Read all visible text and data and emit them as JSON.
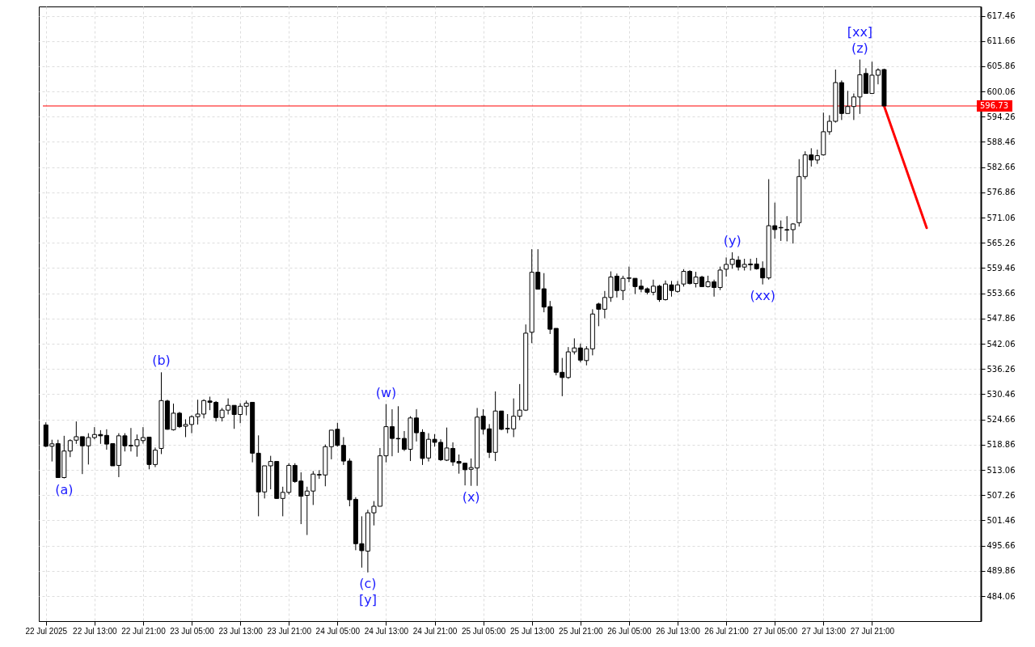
{
  "chart_data": {
    "type": "candlestick",
    "x": [
      "2025-07-22T05:00",
      "2025-07-22T06:00",
      "2025-07-22T07:00",
      "2025-07-22T08:00",
      "2025-07-22T09:00",
      "2025-07-22T10:00",
      "2025-07-22T11:00",
      "2025-07-22T12:00",
      "2025-07-22T13:00",
      "2025-07-22T14:00",
      "2025-07-22T15:00",
      "2025-07-22T16:00",
      "2025-07-22T17:00",
      "2025-07-22T18:00",
      "2025-07-22T19:00",
      "2025-07-22T20:00",
      "2025-07-22T21:00",
      "2025-07-22T22:00",
      "2025-07-22T23:00",
      "2025-07-23T00:00",
      "2025-07-23T01:00",
      "2025-07-23T02:00",
      "2025-07-23T03:00",
      "2025-07-23T04:00",
      "2025-07-23T05:00",
      "2025-07-23T06:00",
      "2025-07-23T07:00",
      "2025-07-23T08:00",
      "2025-07-23T09:00",
      "2025-07-23T10:00",
      "2025-07-23T11:00",
      "2025-07-23T12:00",
      "2025-07-23T13:00",
      "2025-07-23T14:00",
      "2025-07-23T15:00",
      "2025-07-23T16:00",
      "2025-07-23T17:00",
      "2025-07-23T18:00",
      "2025-07-23T19:00",
      "2025-07-23T20:00",
      "2025-07-23T21:00",
      "2025-07-23T22:00",
      "2025-07-23T23:00",
      "2025-07-24T00:00",
      "2025-07-24T01:00",
      "2025-07-24T02:00",
      "2025-07-24T03:00",
      "2025-07-24T04:00",
      "2025-07-24T05:00",
      "2025-07-24T06:00",
      "2025-07-24T07:00",
      "2025-07-24T08:00",
      "2025-07-24T09:00",
      "2025-07-24T10:00",
      "2025-07-24T11:00",
      "2025-07-24T12:00",
      "2025-07-24T13:00",
      "2025-07-24T14:00",
      "2025-07-24T15:00",
      "2025-07-24T16:00",
      "2025-07-24T17:00",
      "2025-07-24T18:00",
      "2025-07-24T19:00",
      "2025-07-24T20:00",
      "2025-07-24T21:00",
      "2025-07-24T22:00",
      "2025-07-24T23:00",
      "2025-07-25T00:00",
      "2025-07-25T01:00",
      "2025-07-25T02:00",
      "2025-07-25T03:00",
      "2025-07-25T04:00",
      "2025-07-25T05:00",
      "2025-07-25T06:00",
      "2025-07-25T07:00",
      "2025-07-25T08:00",
      "2025-07-25T09:00",
      "2025-07-25T10:00",
      "2025-07-25T11:00",
      "2025-07-25T12:00",
      "2025-07-25T13:00",
      "2025-07-25T14:00",
      "2025-07-25T15:00",
      "2025-07-25T16:00",
      "2025-07-25T17:00",
      "2025-07-25T18:00",
      "2025-07-25T19:00",
      "2025-07-25T20:00",
      "2025-07-25T21:00",
      "2025-07-25T22:00",
      "2025-07-25T23:00",
      "2025-07-26T00:00",
      "2025-07-26T01:00",
      "2025-07-26T02:00",
      "2025-07-26T03:00",
      "2025-07-26T04:00",
      "2025-07-26T05:00",
      "2025-07-26T06:00",
      "2025-07-26T07:00",
      "2025-07-26T08:00",
      "2025-07-26T09:00",
      "2025-07-26T10:00",
      "2025-07-26T11:00",
      "2025-07-26T12:00",
      "2025-07-26T13:00",
      "2025-07-26T14:00",
      "2025-07-26T15:00",
      "2025-07-26T16:00",
      "2025-07-26T17:00",
      "2025-07-26T18:00",
      "2025-07-26T19:00",
      "2025-07-26T20:00",
      "2025-07-26T21:00",
      "2025-07-26T22:00",
      "2025-07-26T23:00",
      "2025-07-27T00:00",
      "2025-07-27T01:00",
      "2025-07-27T02:00",
      "2025-07-27T03:00",
      "2025-07-27T04:00",
      "2025-07-27T05:00",
      "2025-07-27T06:00",
      "2025-07-27T07:00",
      "2025-07-27T08:00",
      "2025-07-27T09:00",
      "2025-07-27T10:00",
      "2025-07-27T11:00",
      "2025-07-27T12:00",
      "2025-07-27T13:00",
      "2025-07-27T14:00",
      "2025-07-27T15:00",
      "2025-07-27T16:00",
      "2025-07-27T17:00",
      "2025-07-27T18:00",
      "2025-07-27T19:00",
      "2025-07-27T20:00",
      "2025-07-27T21:00",
      "2025-07-27T22:00",
      "2025-07-27T23:00"
    ],
    "ohlc": [
      [
        523.4,
        524.0,
        518.3,
        518.5
      ],
      [
        518.5,
        520.0,
        515.0,
        519.05
      ],
      [
        519.1,
        520.0,
        511.3,
        511.3
      ],
      [
        511.3,
        520.9,
        511.1,
        517.4
      ],
      [
        517.4,
        520.1,
        516.0,
        519.8
      ],
      [
        519.9,
        524.2,
        519.05,
        520.7
      ],
      [
        520.7,
        520.7,
        512.1,
        518.6
      ],
      [
        518.6,
        521.5,
        514.3,
        520.5
      ],
      [
        520.5,
        522.9,
        520.1,
        521.2
      ],
      [
        521.2,
        522.2,
        519.05,
        520.9
      ],
      [
        521.0,
        522.4,
        517.7,
        519.0
      ],
      [
        519.1,
        519.1,
        514.0,
        514.0
      ],
      [
        514.1,
        521.5,
        511.4,
        520.9
      ],
      [
        520.9,
        521.5,
        517.3,
        518.6
      ],
      [
        518.7,
        522.7,
        517.3,
        518.6
      ],
      [
        518.6,
        521.2,
        516.1,
        520.0
      ],
      [
        519.8,
        522.9,
        519.1,
        520.5
      ],
      [
        520.6,
        520.6,
        513.2,
        514.3
      ],
      [
        514.3,
        518.2,
        513.7,
        517.6
      ],
      [
        518.0,
        535.5,
        516.7,
        529.0
      ],
      [
        528.9,
        529.2,
        522.3,
        522.4
      ],
      [
        522.3,
        528.3,
        522.1,
        526.1
      ],
      [
        526.1,
        526.4,
        522.7,
        523.0
      ],
      [
        523.1,
        524.7,
        520.6,
        523.5
      ],
      [
        523.5,
        525.6,
        521.5,
        525.3
      ],
      [
        525.3,
        529.2,
        523.5,
        525.9
      ],
      [
        525.9,
        529.3,
        524.9,
        529.0
      ],
      [
        528.9,
        529.9,
        526.8,
        528.6
      ],
      [
        528.6,
        528.9,
        524.2,
        525.1
      ],
      [
        525.1,
        527.3,
        524.2,
        526.8
      ],
      [
        526.8,
        529.5,
        525.8,
        527.9
      ],
      [
        527.9,
        527.9,
        522.5,
        525.8
      ],
      [
        525.8,
        528.4,
        523.8,
        527.7
      ],
      [
        527.7,
        529.0,
        525.6,
        528.4
      ],
      [
        528.6,
        528.6,
        514.8,
        516.9
      ],
      [
        516.9,
        521.0,
        502.4,
        508.0
      ],
      [
        508.0,
        514.0,
        506.5,
        514.0
      ],
      [
        514.0,
        516.3,
        508.6,
        515.0
      ],
      [
        515.0,
        515.0,
        506.4,
        506.5
      ],
      [
        506.5,
        509.2,
        502.4,
        507.9
      ],
      [
        507.9,
        514.6,
        507.4,
        514.1
      ],
      [
        514.1,
        514.6,
        510.1,
        510.4
      ],
      [
        510.5,
        512.5,
        500.6,
        507.0
      ],
      [
        507.2,
        509.2,
        498.1,
        508.2
      ],
      [
        508.2,
        512.8,
        505.0,
        512.1
      ],
      [
        512.0,
        513.0,
        511.0,
        511.9
      ],
      [
        511.9,
        518.9,
        509.3,
        518.4
      ],
      [
        518.4,
        522.2,
        515.5,
        522.2
      ],
      [
        522.4,
        523.9,
        518.4,
        518.7
      ],
      [
        518.7,
        520.6,
        514.2,
        515.1
      ],
      [
        515.1,
        515.7,
        504.7,
        506.2
      ],
      [
        506.3,
        506.8,
        494.6,
        496.1
      ],
      [
        496.1,
        502.4,
        490.6,
        494.5
      ],
      [
        494.4,
        503.9,
        489.5,
        503.2
      ],
      [
        503.2,
        505.9,
        500.3,
        504.7
      ],
      [
        504.7,
        518.1,
        504.7,
        516.3
      ],
      [
        516.3,
        528.2,
        514.8,
        523.0
      ],
      [
        523.0,
        527.0,
        516.2,
        520.3
      ],
      [
        520.3,
        527.7,
        517.0,
        520.2
      ],
      [
        520.3,
        522.0,
        517.4,
        517.8
      ],
      [
        517.8,
        525.4,
        515.1,
        525.0
      ],
      [
        525.0,
        527.0,
        519.6,
        521.6
      ],
      [
        521.7,
        522.4,
        514.2,
        515.7
      ],
      [
        515.8,
        521.5,
        515.0,
        520.1
      ],
      [
        520.1,
        521.3,
        518.4,
        519.4
      ],
      [
        519.4,
        520.1,
        515.1,
        515.4
      ],
      [
        515.3,
        522.8,
        515.1,
        518.1
      ],
      [
        518.0,
        519.4,
        514.0,
        514.9
      ],
      [
        515.0,
        516.6,
        512.2,
        514.6
      ],
      [
        514.6,
        514.6,
        509.5,
        513.1
      ],
      [
        513.2,
        515.7,
        509.4,
        513.6
      ],
      [
        513.5,
        527.3,
        509.4,
        525.2
      ],
      [
        525.4,
        527.0,
        521.2,
        522.4
      ],
      [
        522.5,
        523.6,
        515.8,
        517.1
      ],
      [
        517.1,
        531.1,
        515.1,
        526.6
      ],
      [
        526.6,
        526.6,
        522.2,
        522.4
      ],
      [
        522.6,
        525.9,
        521.5,
        522.5
      ],
      [
        522.5,
        529.5,
        520.6,
        525.4
      ],
      [
        525.4,
        532.8,
        524.5,
        526.8
      ],
      [
        526.8,
        546.5,
        526.6,
        544.5
      ],
      [
        544.7,
        563.8,
        542.2,
        558.5
      ],
      [
        558.5,
        563.8,
        554.6,
        554.6
      ],
      [
        554.7,
        558.3,
        549.3,
        550.5
      ],
      [
        550.6,
        551.9,
        544.3,
        545.4
      ],
      [
        545.6,
        545.6,
        534.8,
        535.5
      ],
      [
        535.5,
        538.8,
        530.0,
        534.3
      ],
      [
        534.3,
        541.3,
        534.0,
        540.2
      ],
      [
        540.2,
        543.3,
        539.6,
        541.1
      ],
      [
        541.1,
        542.1,
        537.8,
        538.3
      ],
      [
        538.2,
        541.5,
        537.1,
        540.9
      ],
      [
        540.9,
        550.0,
        539.4,
        548.9
      ],
      [
        551.2,
        551.5,
        546.1,
        550.0
      ],
      [
        550.0,
        554.2,
        547.9,
        552.7
      ],
      [
        552.7,
        558.7,
        551.7,
        557.4
      ],
      [
        557.6,
        558.2,
        552.7,
        554.3
      ],
      [
        554.3,
        557.7,
        552.1,
        557.1
      ],
      [
        557.1,
        559.8,
        556.2,
        557.2
      ],
      [
        557.1,
        557.1,
        553.5,
        555.2
      ],
      [
        555.3,
        556.8,
        553.9,
        554.6
      ],
      [
        554.7,
        555.0,
        553.4,
        553.9
      ],
      [
        553.9,
        556.8,
        553.2,
        555.3
      ],
      [
        555.3,
        555.6,
        551.7,
        552.2
      ],
      [
        552.2,
        556.6,
        552.0,
        555.8
      ],
      [
        555.6,
        556.5,
        552.9,
        554.3
      ],
      [
        554.1,
        556.5,
        553.8,
        555.6
      ],
      [
        555.8,
        559.2,
        555.2,
        558.7
      ],
      [
        558.7,
        559.0,
        555.7,
        555.9
      ],
      [
        555.9,
        558.6,
        555.0,
        557.4
      ],
      [
        557.4,
        557.7,
        555.2,
        555.2
      ],
      [
        555.2,
        557.7,
        555.0,
        556.3
      ],
      [
        556.3,
        556.8,
        552.9,
        555.0
      ],
      [
        555.0,
        559.8,
        554.4,
        559.0
      ],
      [
        559.2,
        561.9,
        557.5,
        560.3
      ],
      [
        560.3,
        563.1,
        559.3,
        561.5
      ],
      [
        561.3,
        562.2,
        558.9,
        559.7
      ],
      [
        559.7,
        561.6,
        558.9,
        560.3
      ],
      [
        560.4,
        561.6,
        558.9,
        560.2
      ],
      [
        560.4,
        561.8,
        559.1,
        559.3
      ],
      [
        559.4,
        561.0,
        555.7,
        557.2
      ],
      [
        557.2,
        579.9,
        556.8,
        569.2
      ],
      [
        569.2,
        574.5,
        566.2,
        568.3
      ],
      [
        568.8,
        570.4,
        565.7,
        568.7
      ],
      [
        568.3,
        571.4,
        565.6,
        568.2
      ],
      [
        568.3,
        569.8,
        565.1,
        569.6
      ],
      [
        569.9,
        584.5,
        569.0,
        580.5
      ],
      [
        580.5,
        586.3,
        579.9,
        585.5
      ],
      [
        585.5,
        587.0,
        582.8,
        584.3
      ],
      [
        584.3,
        586.7,
        583.4,
        585.3
      ],
      [
        585.5,
        595.2,
        585.3,
        590.8
      ],
      [
        590.8,
        594.6,
        590.1,
        593.2
      ],
      [
        593.2,
        605.1,
        592.9,
        602.1
      ],
      [
        602.1,
        602.6,
        593.5,
        595.0
      ],
      [
        595.0,
        600.2,
        595.0,
        596.6
      ],
      [
        596.6,
        599.6,
        593.5,
        598.8
      ],
      [
        598.8,
        607.4,
        594.9,
        603.9
      ],
      [
        604.2,
        605.4,
        599.6,
        599.6
      ],
      [
        599.6,
        606.9,
        599.6,
        603.8
      ],
      [
        603.8,
        605.4,
        601.7,
        605.0
      ],
      [
        605.1,
        605.3,
        596.73,
        596.73
      ]
    ],
    "series": [
      {
        "type": "line",
        "color": "#ff0000",
        "x": [
          "2025-07-27T23:00",
          "2025-07-28T06:00"
        ],
        "values": [
          596.7,
          568.7
        ]
      }
    ],
    "xlim": [
      "2025-07-22T04:30",
      "2025-07-28T14:15"
    ],
    "xticks": [
      {
        "value": "2025-07-22T05:00",
        "label": "22 Jul 2025"
      },
      {
        "value": "2025-07-22T13:00",
        "label": "22 Jul 13:00"
      },
      {
        "value": "2025-07-22T21:00",
        "label": "22 Jul 21:00"
      },
      {
        "value": "2025-07-23T05:00",
        "label": "23 Jul 05:00"
      },
      {
        "value": "2025-07-23T13:00",
        "label": "23 Jul 13:00"
      },
      {
        "value": "2025-07-23T21:00",
        "label": "23 Jul 21:00"
      },
      {
        "value": "2025-07-24T05:00",
        "label": "24 Jul 05:00"
      },
      {
        "value": "2025-07-24T13:00",
        "label": "24 Jul 13:00"
      },
      {
        "value": "2025-07-24T21:00",
        "label": "24 Jul 21:00"
      },
      {
        "value": "2025-07-25T05:00",
        "label": "25 Jul 05:00"
      },
      {
        "value": "2025-07-25T13:00",
        "label": "25 Jul 13:00"
      },
      {
        "value": "2025-07-25T21:00",
        "label": "25 Jul 21:00"
      },
      {
        "value": "2025-07-26T05:00",
        "label": "26 Jul 05:00"
      },
      {
        "value": "2025-07-26T13:00",
        "label": "26 Jul 13:00"
      },
      {
        "value": "2025-07-26T21:00",
        "label": "26 Jul 21:00"
      },
      {
        "value": "2025-07-27T05:00",
        "label": "27 Jul 05:00"
      },
      {
        "value": "2025-07-27T13:00",
        "label": "27 Jul 13:00"
      },
      {
        "value": "2025-07-27T21:00",
        "label": "27 Jul 21:00"
      }
    ],
    "ylim": [
      478.3,
      619.6
    ],
    "yticks": [
      484.06,
      489.86,
      495.66,
      501.46,
      507.26,
      513.06,
      518.86,
      524.66,
      530.46,
      536.26,
      542.06,
      547.86,
      553.66,
      559.46,
      565.26,
      571.06,
      576.86,
      582.66,
      588.46,
      594.26,
      600.06,
      605.86,
      611.66,
      617.46
    ],
    "grid": true,
    "ref_lines": [
      {
        "axis": "y",
        "value": 596.73,
        "label": "596.73",
        "color": "#ff0000"
      }
    ],
    "annotations": [
      {
        "text": "(a)",
        "x": "2025-07-22T08:00",
        "y": 511.1
      },
      {
        "text": "(b)",
        "x": "2025-07-23T00:00",
        "y": 535.5
      },
      {
        "text": "(c)",
        "x": "2025-07-24T10:00",
        "y": 489.5
      },
      {
        "text": "[y]",
        "x": "2025-07-24T10:00",
        "y": 489.5
      },
      {
        "text": "(w)",
        "x": "2025-07-24T13:00",
        "y": 528.2
      },
      {
        "text": "(x)",
        "x": "2025-07-25T03:00",
        "y": 509.4
      },
      {
        "text": "(y)",
        "x": "2025-07-26T22:00",
        "y": 563.1
      },
      {
        "text": "(xx)",
        "x": "2025-07-27T03:00",
        "y": 555.7
      },
      {
        "text": "(z)",
        "x": "2025-07-27T19:00",
        "y": 607.4
      },
      {
        "text": "[xx]",
        "x": "2025-07-27T19:00",
        "y": 607.4
      }
    ]
  }
}
